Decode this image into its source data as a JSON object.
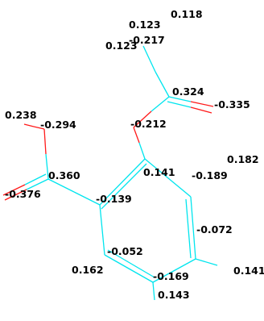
{
  "molecule": {
    "bond_colors": {
      "carbon": "#00e5ee",
      "oxygen": "#ff1a1a"
    },
    "atoms": [
      {
        "id": "me_c",
        "element": "C",
        "charge_label": "-0.217"
      },
      {
        "id": "me_h1",
        "element": "H",
        "charge_label": "0.123"
      },
      {
        "id": "me_h2",
        "element": "H",
        "charge_label": "0.123"
      },
      {
        "id": "me_h3",
        "element": "H",
        "charge_label": "0.118"
      },
      {
        "id": "ac_c",
        "element": "C",
        "charge_label": "0.324"
      },
      {
        "id": "ac_o",
        "element": "O",
        "charge_label": "-0.335"
      },
      {
        "id": "es_o",
        "element": "O",
        "charge_label": "-0.212"
      },
      {
        "id": "oh_h",
        "element": "H",
        "charge_label": "0.238"
      },
      {
        "id": "oh_o",
        "element": "O",
        "charge_label": "-0.294"
      },
      {
        "id": "co_c",
        "element": "C",
        "charge_label": "0.360"
      },
      {
        "id": "co_o",
        "element": "O",
        "charge_label": "-0.376"
      },
      {
        "id": "r1",
        "element": "C",
        "charge_label": "0.141"
      },
      {
        "id": "h_r2",
        "element": "H",
        "charge_label": "0.182"
      },
      {
        "id": "r2",
        "element": "C",
        "charge_label": "-0.189"
      },
      {
        "id": "r6",
        "element": "C",
        "charge_label": "-0.139"
      },
      {
        "id": "r3",
        "element": "C",
        "charge_label": "-0.072"
      },
      {
        "id": "h_r3",
        "element": "H",
        "charge_label": "0.141"
      },
      {
        "id": "r5",
        "element": "C",
        "charge_label": "-0.052"
      },
      {
        "id": "h_r5",
        "element": "H",
        "charge_label": "0.162"
      },
      {
        "id": "r4",
        "element": "C",
        "charge_label": "-0.169"
      },
      {
        "id": "h_r4",
        "element": "H",
        "charge_label": "0.143"
      }
    ]
  }
}
